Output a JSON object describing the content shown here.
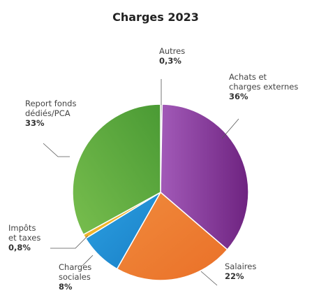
{
  "chart_data": {
    "type": "pie",
    "title": "Charges 2023",
    "slices": [
      {
        "label": [
          "Autres"
        ],
        "value": 0.3,
        "pct_label": "0,3%",
        "color": "#8a8a8a"
      },
      {
        "label": [
          "Achats et",
          "charges externes"
        ],
        "value": 36,
        "pct_label": "36%",
        "color": "#8a3a9a"
      },
      {
        "label": [
          "Salaires"
        ],
        "value": 22,
        "pct_label": "22%",
        "color": "#ee7d32"
      },
      {
        "label": [
          "Charges",
          "sociales"
        ],
        "value": 8,
        "pct_label": "8%",
        "color": "#1f8fd6"
      },
      {
        "label": [
          "Impôts",
          "et taxes"
        ],
        "value": 0.8,
        "pct_label": "0,8%",
        "color": "#f0b42a"
      },
      {
        "label": [
          "Report fonds",
          "dédiés/PCA"
        ],
        "value": 33,
        "pct_label": "33%",
        "color": "#5aa83f"
      }
    ]
  }
}
